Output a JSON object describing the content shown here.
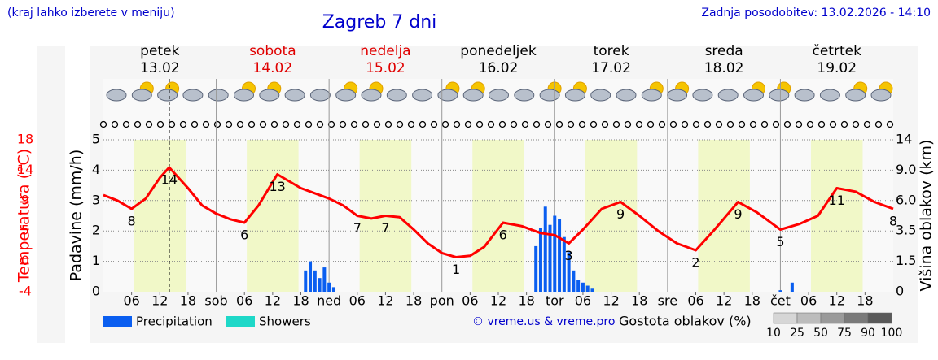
{
  "header": {
    "note": "(kraj lahko izberete v meniju)",
    "title": "Zagreb 7 dni",
    "updated": "Zadnja posodobitev: 13.02.2026 - 14:10"
  },
  "days": [
    {
      "name": "petek",
      "date": "13.02",
      "weekend": false
    },
    {
      "name": "sobota",
      "date": "14.02",
      "weekend": true
    },
    {
      "name": "nedelja",
      "date": "15.02",
      "weekend": true
    },
    {
      "name": "ponedeljek",
      "date": "16.02",
      "weekend": false
    },
    {
      "name": "torek",
      "date": "17.02",
      "weekend": false
    },
    {
      "name": "sreda",
      "date": "18.02",
      "weekend": false
    },
    {
      "name": "četrtek",
      "date": "19.02",
      "weekend": false
    }
  ],
  "chart_data": {
    "type": "meteogram",
    "xlim": [
      0,
      168
    ],
    "xticks": [
      {
        "value": 6,
        "label": "06"
      },
      {
        "value": 12,
        "label": "12"
      },
      {
        "value": 18,
        "label": "18"
      },
      {
        "value": 24,
        "label": "sob"
      },
      {
        "value": 30,
        "label": "06"
      },
      {
        "value": 36,
        "label": "12"
      },
      {
        "value": 42,
        "label": "18"
      },
      {
        "value": 48,
        "label": "ned"
      },
      {
        "value": 54,
        "label": "06"
      },
      {
        "value": 60,
        "label": "12"
      },
      {
        "value": 66,
        "label": "18"
      },
      {
        "value": 72,
        "label": "pon"
      },
      {
        "value": 78,
        "label": "06"
      },
      {
        "value": 84,
        "label": "12"
      },
      {
        "value": 90,
        "label": "18"
      },
      {
        "value": 96,
        "label": "tor"
      },
      {
        "value": 102,
        "label": "06"
      },
      {
        "value": 108,
        "label": "12"
      },
      {
        "value": 114,
        "label": "18"
      },
      {
        "value": 120,
        "label": "sre"
      },
      {
        "value": 126,
        "label": "06"
      },
      {
        "value": 132,
        "label": "12"
      },
      {
        "value": 138,
        "label": "18"
      },
      {
        "value": 144,
        "label": "čet"
      },
      {
        "value": 150,
        "label": "06"
      },
      {
        "value": 156,
        "label": "12"
      },
      {
        "value": 162,
        "label": "18"
      }
    ],
    "ylabel": "Padavine (mm/h)",
    "ylim": [
      0,
      5
    ],
    "yticks": [
      0,
      1,
      2,
      3,
      4,
      5
    ],
    "y2label": "Višina oblakov (km)",
    "y2ticks": [
      0,
      1.5,
      3.5,
      {
        "value": 6,
        "label": "6.0"
      },
      {
        "value": 9,
        "label": "9.0"
      },
      14
    ],
    "grid": true,
    "temperature": {
      "label": "Temperatura (°C)",
      "color": "#ff0000",
      "lim": [
        -4,
        18
      ],
      "ticks": [
        -4,
        {
          "value": 0.4,
          "label": "0"
        },
        {
          "value": 4.8,
          "label": "5"
        },
        {
          "value": 9.2,
          "label": "9"
        },
        {
          "value": 13.6,
          "label": "14"
        },
        18
      ],
      "x": [
        0,
        3,
        6,
        9,
        12,
        14,
        18,
        21,
        24,
        27,
        30,
        33,
        37,
        42,
        48,
        51,
        54,
        57,
        60,
        63,
        66,
        69,
        72,
        75,
        78,
        81,
        85,
        89,
        93,
        96,
        99,
        102,
        106,
        110,
        114,
        118,
        122,
        126,
        130,
        135,
        139,
        144,
        148,
        152,
        156,
        160,
        164,
        168
      ],
      "values": [
        10,
        9.2,
        8,
        9.5,
        12.5,
        14,
        11,
        8.5,
        7.3,
        6.5,
        6,
        8.5,
        13,
        11,
        9.5,
        8.5,
        7,
        6.6,
        7,
        6.8,
        5,
        3,
        1.6,
        1,
        1.2,
        2.5,
        6,
        5.5,
        4.5,
        4.2,
        3,
        5,
        8,
        9,
        7,
        4.8,
        3,
        2,
        5,
        9,
        7.5,
        5,
        5.8,
        7,
        11,
        10.5,
        9,
        8
      ],
      "value_labels": [
        null,
        null,
        "8",
        null,
        null,
        "14",
        null,
        null,
        null,
        null,
        "6",
        null,
        "13",
        null,
        null,
        null,
        "7",
        null,
        "7",
        null,
        null,
        null,
        null,
        "1",
        null,
        null,
        "6",
        null,
        null,
        null,
        "3",
        null,
        null,
        "9",
        null,
        null,
        null,
        "2",
        null,
        "9",
        null,
        "5",
        null,
        null,
        "11",
        null,
        null,
        "8"
      ]
    },
    "series": [
      {
        "name": "Precipitation",
        "color": "#0a5ef0",
        "x": [
          43,
          44,
          45,
          46,
          47,
          48,
          49,
          92,
          93,
          94,
          95,
          96,
          97,
          98,
          99,
          100,
          101,
          102,
          103,
          104,
          144,
          146.5
        ],
        "values": [
          0.7,
          1,
          0.7,
          0.45,
          0.8,
          0.3,
          0.15,
          1.5,
          2.1,
          2.8,
          2.2,
          2.5,
          2.4,
          1.8,
          1.3,
          0.7,
          0.4,
          0.3,
          0.2,
          0.1,
          0.05,
          0.3
        ]
      },
      {
        "name": "Showers",
        "color": "#1ed8c8",
        "x": [],
        "values": []
      }
    ],
    "cloud_legend": {
      "title": "Gostota oblakov (%)",
      "levels": [
        10,
        25,
        50,
        75,
        90,
        100
      ]
    },
    "credit": "© vreme.us & vreme.pro"
  }
}
